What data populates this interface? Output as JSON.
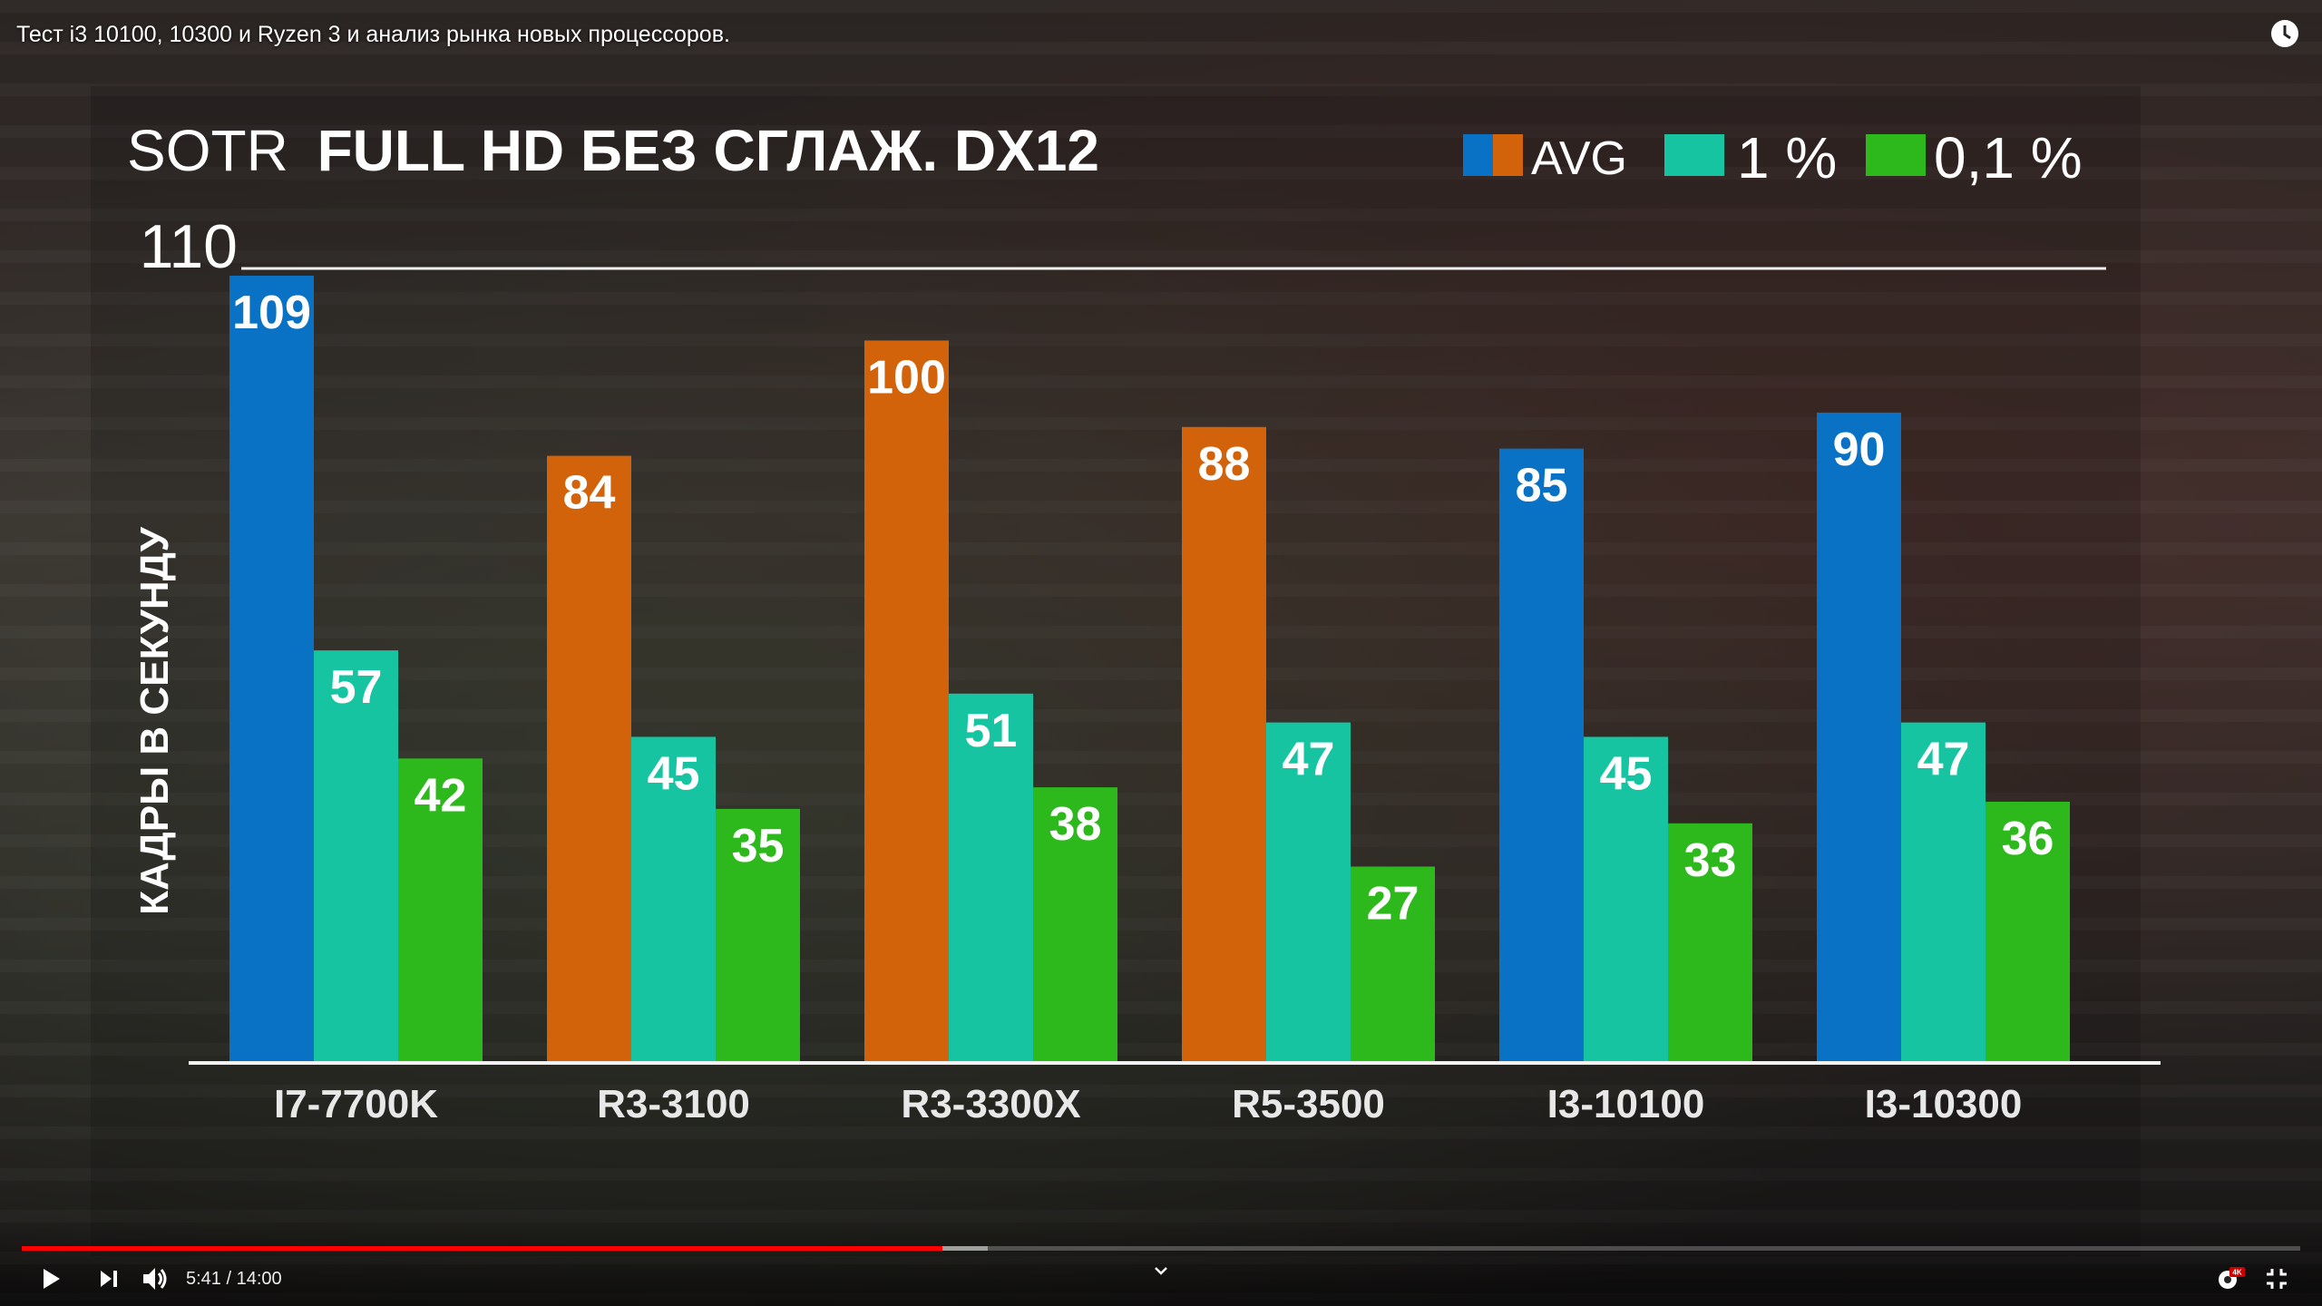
{
  "video": {
    "title": "Тест i3 10100, 10300 и Ryzen 3 и анализ рынка новых процессоров.",
    "time": "5:41 / 14:00",
    "progress": 0.404,
    "buffered": 0.424,
    "badge": "4K"
  },
  "icons": {
    "watch_later": "clock-icon",
    "play": "play-icon",
    "next": "next-icon",
    "volume": "volume-icon",
    "settings": "gear-icon",
    "fullscreen_exit": "exit-fullscreen-icon",
    "chevron": "chevron-down-icon"
  },
  "colors": {
    "avg_intel": "#0a72c4",
    "avg_amd": "#d2630a",
    "p1": "#17c4a2",
    "p01": "#2db81c",
    "axis": "#f2f2f2",
    "progress": "#ff0000"
  },
  "chart_data": {
    "type": "bar",
    "title_prefix": "SOTR",
    "title_main": "FULL HD БЕЗ СГЛАЖ. DX12",
    "ylabel": "КАДРЫ В СЕКУНДУ",
    "ytick_label": "110",
    "ylim": [
      0,
      110
    ],
    "grid": false,
    "legend_position": "top-right",
    "categories": [
      "I7-7700K",
      "R3-3100",
      "R3-3300X",
      "R5-3500",
      "I3-10100",
      "I3-10300"
    ],
    "vendor": [
      "intel",
      "amd",
      "amd",
      "amd",
      "intel",
      "intel"
    ],
    "series": [
      {
        "name": "AVG",
        "values": [
          109,
          84,
          100,
          88,
          85,
          90
        ]
      },
      {
        "name": "1 %",
        "values": [
          57,
          45,
          51,
          47,
          45,
          47
        ]
      },
      {
        "name": "0,1 %",
        "values": [
          42,
          35,
          38,
          27,
          33,
          36
        ]
      }
    ]
  }
}
